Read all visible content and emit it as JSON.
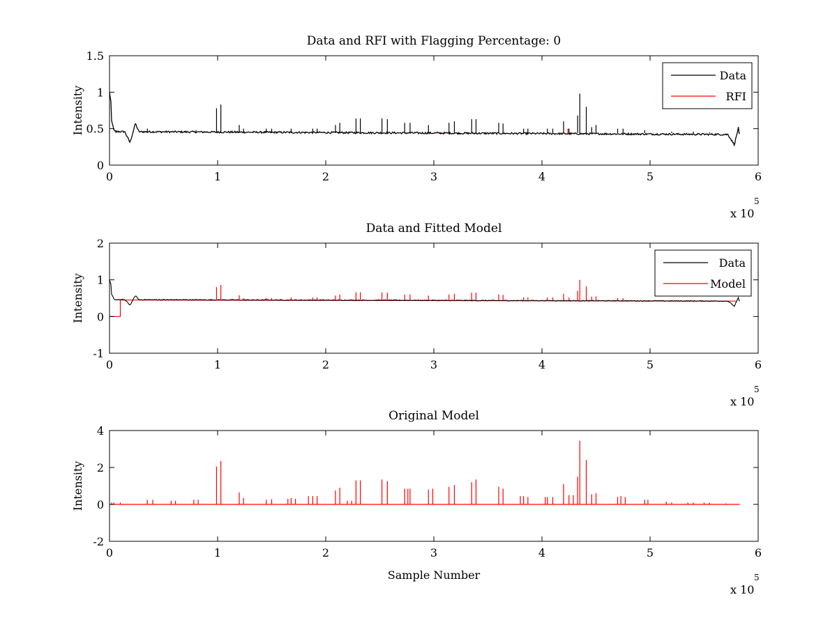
{
  "figure": {
    "background": "#ffffff"
  },
  "colors": {
    "data": "#000000",
    "rfi": "#ff0000",
    "model": "#ff0000",
    "axes": "#000000"
  },
  "chart_data": [
    {
      "type": "line",
      "title": "Data and RFI with Flagging Percentage: 0",
      "xlabel": "",
      "ylabel": "Intensity",
      "xlim": [
        0,
        6
      ],
      "ylim": [
        0,
        1.5
      ],
      "x_ticks": [
        "0",
        "1",
        "2",
        "3",
        "4",
        "5",
        "6"
      ],
      "y_ticks": [
        "0",
        "0.5",
        "1",
        "1.5"
      ],
      "x_exponent": {
        "base": "x 10",
        "power": "5"
      },
      "grid": false,
      "legend": {
        "position": "top-right",
        "entries": [
          "Data",
          "RFI"
        ]
      },
      "baseline": {
        "start": 0.46,
        "end": 0.42
      },
      "features": {
        "start_spike": 1.0,
        "start_dip": {
          "x": 0.19,
          "y": 0.31
        },
        "early_bump": {
          "x": 0.24,
          "y": 0.57
        },
        "end_dip": {
          "x": 5.78,
          "y": 0.28
        },
        "end_bump": {
          "x": 5.82,
          "y": 0.53
        }
      },
      "series": [
        {
          "name": "Data",
          "color": "#000000",
          "spikes": [
            [
              0.06,
              0.48
            ],
            [
              0.35,
              0.5
            ],
            [
              0.8,
              0.48
            ],
            [
              0.99,
              0.78
            ],
            [
              1.03,
              0.83
            ],
            [
              1.2,
              0.55
            ],
            [
              1.24,
              0.5
            ],
            [
              1.45,
              0.5
            ],
            [
              1.5,
              0.5
            ],
            [
              1.68,
              0.5
            ],
            [
              1.88,
              0.5
            ],
            [
              1.92,
              0.5
            ],
            [
              2.09,
              0.55
            ],
            [
              2.13,
              0.58
            ],
            [
              2.28,
              0.64
            ],
            [
              2.32,
              0.64
            ],
            [
              2.52,
              0.64
            ],
            [
              2.57,
              0.63
            ],
            [
              2.73,
              0.58
            ],
            [
              2.78,
              0.58
            ],
            [
              2.95,
              0.55
            ],
            [
              3.14,
              0.58
            ],
            [
              3.19,
              0.6
            ],
            [
              3.35,
              0.63
            ],
            [
              3.39,
              0.63
            ],
            [
              3.6,
              0.58
            ],
            [
              3.64,
              0.57
            ],
            [
              3.83,
              0.5
            ],
            [
              3.87,
              0.5
            ],
            [
              4.05,
              0.5
            ],
            [
              4.1,
              0.5
            ],
            [
              4.2,
              0.6
            ],
            [
              4.25,
              0.5
            ],
            [
              4.33,
              0.68
            ],
            [
              4.35,
              0.98
            ],
            [
              4.41,
              0.8
            ],
            [
              4.46,
              0.52
            ],
            [
              4.5,
              0.55
            ],
            [
              4.7,
              0.5
            ],
            [
              4.75,
              0.5
            ],
            [
              4.95,
              0.48
            ],
            [
              5.2,
              0.46
            ],
            [
              5.4,
              0.46
            ],
            [
              5.55,
              0.45
            ]
          ]
        },
        {
          "name": "RFI",
          "color": "#ff0000",
          "spikes": [
            [
              3.03,
              0.46
            ],
            [
              4.24,
              0.5
            ]
          ]
        }
      ]
    },
    {
      "type": "line",
      "title": "Data and Fitted Model",
      "xlabel": "",
      "ylabel": "Intensity",
      "xlim": [
        0,
        6
      ],
      "ylim": [
        -1,
        2
      ],
      "x_ticks": [
        "0",
        "1",
        "2",
        "3",
        "4",
        "5",
        "6"
      ],
      "y_ticks": [
        "-1",
        "0",
        "1",
        "2"
      ],
      "x_exponent": {
        "base": "x 10",
        "power": "5"
      },
      "grid": false,
      "legend": {
        "position": "top-right",
        "entries": [
          "Data",
          "Model"
        ]
      },
      "model_start_step": {
        "from": 0.0,
        "to": 0.1,
        "y": 0.0
      },
      "series": [
        {
          "name": "Data",
          "color": "#000000"
        },
        {
          "name": "Model",
          "color": "#ff0000",
          "spikes": [
            [
              0.99,
              0.8
            ],
            [
              1.03,
              0.86
            ],
            [
              1.2,
              0.58
            ],
            [
              1.24,
              0.5
            ],
            [
              1.45,
              0.5
            ],
            [
              1.5,
              0.5
            ],
            [
              1.68,
              0.52
            ],
            [
              1.88,
              0.52
            ],
            [
              1.92,
              0.52
            ],
            [
              2.09,
              0.57
            ],
            [
              2.13,
              0.6
            ],
            [
              2.28,
              0.66
            ],
            [
              2.32,
              0.66
            ],
            [
              2.52,
              0.66
            ],
            [
              2.57,
              0.65
            ],
            [
              2.73,
              0.6
            ],
            [
              2.78,
              0.6
            ],
            [
              2.95,
              0.57
            ],
            [
              3.14,
              0.6
            ],
            [
              3.19,
              0.62
            ],
            [
              3.35,
              0.65
            ],
            [
              3.39,
              0.65
            ],
            [
              3.6,
              0.6
            ],
            [
              3.64,
              0.59
            ],
            [
              3.83,
              0.52
            ],
            [
              3.87,
              0.52
            ],
            [
              4.05,
              0.52
            ],
            [
              4.1,
              0.52
            ],
            [
              4.2,
              0.62
            ],
            [
              4.25,
              0.52
            ],
            [
              4.33,
              0.7
            ],
            [
              4.35,
              1.0
            ],
            [
              4.41,
              0.82
            ],
            [
              4.46,
              0.54
            ],
            [
              4.5,
              0.55
            ],
            [
              4.7,
              0.5
            ],
            [
              4.75,
              0.5
            ]
          ]
        }
      ]
    },
    {
      "type": "line",
      "title": "Original Model",
      "xlabel": "Sample Number",
      "ylabel": "Intensity",
      "xlim": [
        0,
        6
      ],
      "ylim": [
        -2,
        4
      ],
      "x_ticks": [
        "0",
        "1",
        "2",
        "3",
        "4",
        "5",
        "6"
      ],
      "y_ticks": [
        "-2",
        "0",
        "2",
        "4"
      ],
      "x_exponent": {
        "base": "x 10",
        "power": "5"
      },
      "grid": false,
      "legend": null,
      "series": [
        {
          "name": "",
          "color": "#ff0000",
          "spikes": [
            [
              0.02,
              0.1
            ],
            [
              0.04,
              0.1
            ],
            [
              0.1,
              0.1
            ],
            [
              0.35,
              0.25
            ],
            [
              0.4,
              0.25
            ],
            [
              0.57,
              0.2
            ],
            [
              0.61,
              0.2
            ],
            [
              0.78,
              0.25
            ],
            [
              0.82,
              0.25
            ],
            [
              0.99,
              2.05
            ],
            [
              1.03,
              2.35
            ],
            [
              1.2,
              0.65
            ],
            [
              1.24,
              0.35
            ],
            [
              1.45,
              0.25
            ],
            [
              1.5,
              0.28
            ],
            [
              1.65,
              0.3
            ],
            [
              1.68,
              0.35
            ],
            [
              1.72,
              0.3
            ],
            [
              1.84,
              0.45
            ],
            [
              1.88,
              0.45
            ],
            [
              1.92,
              0.45
            ],
            [
              2.09,
              0.75
            ],
            [
              2.13,
              0.9
            ],
            [
              2.2,
              0.2
            ],
            [
              2.24,
              0.2
            ],
            [
              2.28,
              1.3
            ],
            [
              2.32,
              1.3
            ],
            [
              2.52,
              1.35
            ],
            [
              2.57,
              1.25
            ],
            [
              2.73,
              0.85
            ],
            [
              2.76,
              0.85
            ],
            [
              2.78,
              0.85
            ],
            [
              2.95,
              0.8
            ],
            [
              2.99,
              0.85
            ],
            [
              3.14,
              0.95
            ],
            [
              3.19,
              1.05
            ],
            [
              3.35,
              1.2
            ],
            [
              3.39,
              1.35
            ],
            [
              3.6,
              0.95
            ],
            [
              3.64,
              0.85
            ],
            [
              3.8,
              0.45
            ],
            [
              3.83,
              0.45
            ],
            [
              3.87,
              0.4
            ],
            [
              4.03,
              0.4
            ],
            [
              4.05,
              0.4
            ],
            [
              4.1,
              0.4
            ],
            [
              4.2,
              1.1
            ],
            [
              4.25,
              0.5
            ],
            [
              4.29,
              0.5
            ],
            [
              4.33,
              1.5
            ],
            [
              4.35,
              3.45
            ],
            [
              4.41,
              2.4
            ],
            [
              4.46,
              0.55
            ],
            [
              4.5,
              0.6
            ],
            [
              4.7,
              0.4
            ],
            [
              4.73,
              0.45
            ],
            [
              4.77,
              0.4
            ],
            [
              4.95,
              0.25
            ],
            [
              4.98,
              0.25
            ],
            [
              5.15,
              0.15
            ],
            [
              5.2,
              0.1
            ],
            [
              5.35,
              0.1
            ],
            [
              5.4,
              0.1
            ],
            [
              5.5,
              0.1
            ],
            [
              5.55,
              0.1
            ],
            [
              5.7,
              0.05
            ]
          ]
        }
      ]
    }
  ]
}
